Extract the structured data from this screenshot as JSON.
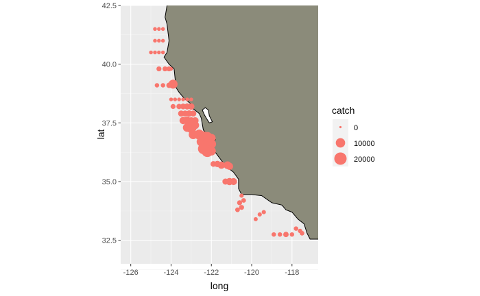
{
  "colors": {
    "panel": "#ebebeb",
    "grid_major": "#ffffff",
    "grid_minor": "#f5f5f5",
    "land": "#8b8b7a",
    "coast": "#000000",
    "points": "#f8766d",
    "ticks": "#4d4d4d"
  },
  "chart_data": {
    "type": "scatter",
    "xlabel": "long",
    "ylabel": "lat",
    "xlim": [
      -126.5,
      -116.7
    ],
    "ylim": [
      31.5,
      42.5
    ],
    "xticks": [
      -126,
      -124,
      -122,
      -120,
      -118
    ],
    "yticks": [
      32.5,
      35.0,
      37.5,
      40.0,
      42.5
    ],
    "xtick_labels": [
      "-126",
      "-124",
      "-122",
      "-120",
      "-118"
    ],
    "ytick_labels": [
      "32.5",
      "35.0",
      "37.5",
      "40.0",
      "42.5"
    ],
    "grid": true,
    "legend": {
      "title": "catch",
      "position": "right",
      "entries": [
        {
          "label": "0",
          "value": 0
        },
        {
          "label": "10000",
          "value": 10000
        },
        {
          "label": "20000",
          "value": 20000
        }
      ]
    },
    "coastline": [
      [
        -124.2,
        42.5
      ],
      [
        -124.3,
        42.0
      ],
      [
        -124.2,
        41.7
      ],
      [
        -124.1,
        41.0
      ],
      [
        -124.2,
        40.5
      ],
      [
        -124.35,
        40.3
      ],
      [
        -124.1,
        40.0
      ],
      [
        -123.85,
        39.8
      ],
      [
        -123.8,
        39.4
      ],
      [
        -123.75,
        39.0
      ],
      [
        -123.6,
        38.8
      ],
      [
        -123.3,
        38.5
      ],
      [
        -123.0,
        38.3
      ],
      [
        -122.9,
        38.1
      ],
      [
        -122.6,
        37.9
      ],
      [
        -122.5,
        37.7
      ],
      [
        -122.4,
        37.2
      ],
      [
        -122.2,
        37.0
      ],
      [
        -121.95,
        36.9
      ],
      [
        -121.8,
        36.8
      ],
      [
        -121.9,
        36.6
      ],
      [
        -121.85,
        36.3
      ],
      [
        -121.5,
        35.9
      ],
      [
        -121.2,
        35.6
      ],
      [
        -120.9,
        35.4
      ],
      [
        -120.65,
        35.1
      ],
      [
        -120.65,
        34.7
      ],
      [
        -120.5,
        34.45
      ],
      [
        -120.0,
        34.45
      ],
      [
        -119.5,
        34.4
      ],
      [
        -119.0,
        34.1
      ],
      [
        -118.5,
        34.0
      ],
      [
        -118.3,
        33.8
      ],
      [
        -118.0,
        33.7
      ],
      [
        -117.7,
        33.4
      ],
      [
        -117.4,
        33.2
      ],
      [
        -117.25,
        32.8
      ],
      [
        -117.1,
        32.55
      ],
      [
        -116.7,
        32.55
      ]
    ],
    "bay": [
      [
        -122.45,
        38.05
      ],
      [
        -122.3,
        38.15
      ],
      [
        -122.15,
        38.05
      ],
      [
        -122.1,
        37.8
      ],
      [
        -121.95,
        37.55
      ],
      [
        -122.1,
        37.5
      ],
      [
        -122.25,
        37.7
      ],
      [
        -122.35,
        37.85
      ]
    ],
    "points": [
      [
        -124.8,
        41.5,
        500
      ],
      [
        -124.6,
        41.5,
        500
      ],
      [
        -124.4,
        41.5,
        500
      ],
      [
        -124.8,
        41.0,
        500
      ],
      [
        -124.6,
        41.0,
        500
      ],
      [
        -124.4,
        41.0,
        500
      ],
      [
        -125.0,
        40.5,
        500
      ],
      [
        -124.8,
        40.5,
        500
      ],
      [
        -124.6,
        40.5,
        500
      ],
      [
        -124.4,
        40.5,
        500
      ],
      [
        -124.6,
        39.8,
        1500
      ],
      [
        -124.3,
        39.8,
        1500
      ],
      [
        -124.1,
        39.8,
        1500
      ],
      [
        -124.0,
        39.8,
        500
      ],
      [
        -124.7,
        39.1,
        1000
      ],
      [
        -124.4,
        39.1,
        1000
      ],
      [
        -124.1,
        39.1,
        2000
      ],
      [
        -123.9,
        39.15,
        9000
      ],
      [
        -124.0,
        38.5,
        500
      ],
      [
        -123.8,
        38.5,
        500
      ],
      [
        -123.6,
        38.5,
        500
      ],
      [
        -123.4,
        38.5,
        500
      ],
      [
        -123.2,
        38.5,
        500
      ],
      [
        -123.0,
        38.5,
        500
      ],
      [
        -123.9,
        38.2,
        1500
      ],
      [
        -123.6,
        38.2,
        2000
      ],
      [
        -123.4,
        38.2,
        2500
      ],
      [
        -123.2,
        38.2,
        3000
      ],
      [
        -123.0,
        38.2,
        3500
      ],
      [
        -123.5,
        37.9,
        3000
      ],
      [
        -123.3,
        37.9,
        3000
      ],
      [
        -123.1,
        37.9,
        3500
      ],
      [
        -122.9,
        37.9,
        3000
      ],
      [
        -123.4,
        37.6,
        5000
      ],
      [
        -123.2,
        37.6,
        6000
      ],
      [
        -123.0,
        37.6,
        4000
      ],
      [
        -122.8,
        37.6,
        4000
      ],
      [
        -123.0,
        37.3,
        14000
      ],
      [
        -123.2,
        37.3,
        8000
      ],
      [
        -122.8,
        37.4,
        6000
      ],
      [
        -122.9,
        37.0,
        9000
      ],
      [
        -122.6,
        37.0,
        12000
      ],
      [
        -122.4,
        36.95,
        9000
      ],
      [
        -122.2,
        36.9,
        12000
      ],
      [
        -122.0,
        36.85,
        8000
      ],
      [
        -122.5,
        36.7,
        10000
      ],
      [
        -122.2,
        36.6,
        14000
      ],
      [
        -122.0,
        36.6,
        10000
      ],
      [
        -122.4,
        36.4,
        14000
      ],
      [
        -122.2,
        36.3,
        18000
      ],
      [
        -122.0,
        36.3,
        9000
      ],
      [
        -121.9,
        35.75,
        2500
      ],
      [
        -121.7,
        35.75,
        3500
      ],
      [
        -121.5,
        35.7,
        5000
      ],
      [
        -121.2,
        35.7,
        6000
      ],
      [
        -121.1,
        35.65,
        5000
      ],
      [
        -121.3,
        35.0,
        3000
      ],
      [
        -121.1,
        35.0,
        5000
      ],
      [
        -120.9,
        35.0,
        4500
      ],
      [
        -120.5,
        34.4,
        800
      ],
      [
        -120.4,
        34.2,
        1200
      ],
      [
        -120.6,
        34.1,
        1500
      ],
      [
        -120.5,
        33.9,
        1500
      ],
      [
        -120.7,
        33.8,
        1200
      ],
      [
        -119.8,
        33.4,
        700
      ],
      [
        -119.6,
        33.6,
        800
      ],
      [
        -119.4,
        33.7,
        800
      ],
      [
        -118.9,
        32.75,
        1000
      ],
      [
        -118.6,
        32.75,
        1000
      ],
      [
        -118.3,
        32.75,
        2000
      ],
      [
        -118.0,
        32.75,
        1000
      ],
      [
        -117.8,
        33.0,
        1000
      ],
      [
        -117.6,
        32.9,
        1000
      ],
      [
        -117.5,
        32.8,
        1200
      ]
    ]
  }
}
